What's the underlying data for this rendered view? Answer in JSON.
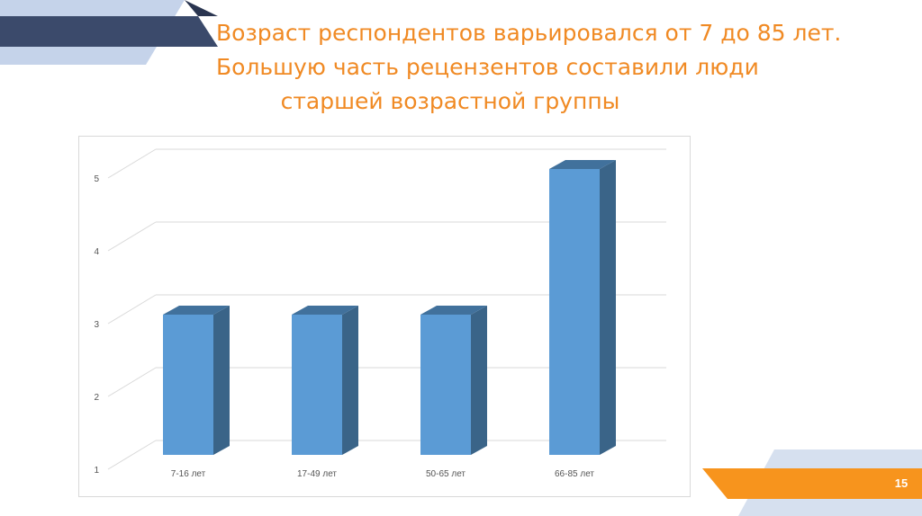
{
  "title": {
    "line1": "Возраст респондентов варьировался от 7 до 85 лет.",
    "line2": "Большую часть рецензентов составили люди",
    "line3": "старшей возрастной группы"
  },
  "page_number": "15",
  "colors": {
    "title": "#f08a24",
    "bar_front": "#5b9bd5",
    "bar_side": "#3a6488",
    "bar_top": "#41719c",
    "banner_dark": "#3b4a6b",
    "banner_light": "#c5d3ea",
    "footer_orange": "#f7941d"
  },
  "chart_data": {
    "type": "bar",
    "categories": [
      "7-16 лет",
      "17-49 лет",
      "50-65 лет",
      "66-85 лет"
    ],
    "values": [
      3,
      3,
      3,
      5
    ],
    "yticks": [
      "1",
      "2",
      "3",
      "4",
      "5"
    ],
    "ylim": [
      1,
      5
    ],
    "grid": true,
    "legend": "none",
    "title": "",
    "xlabel": "",
    "ylabel": ""
  }
}
